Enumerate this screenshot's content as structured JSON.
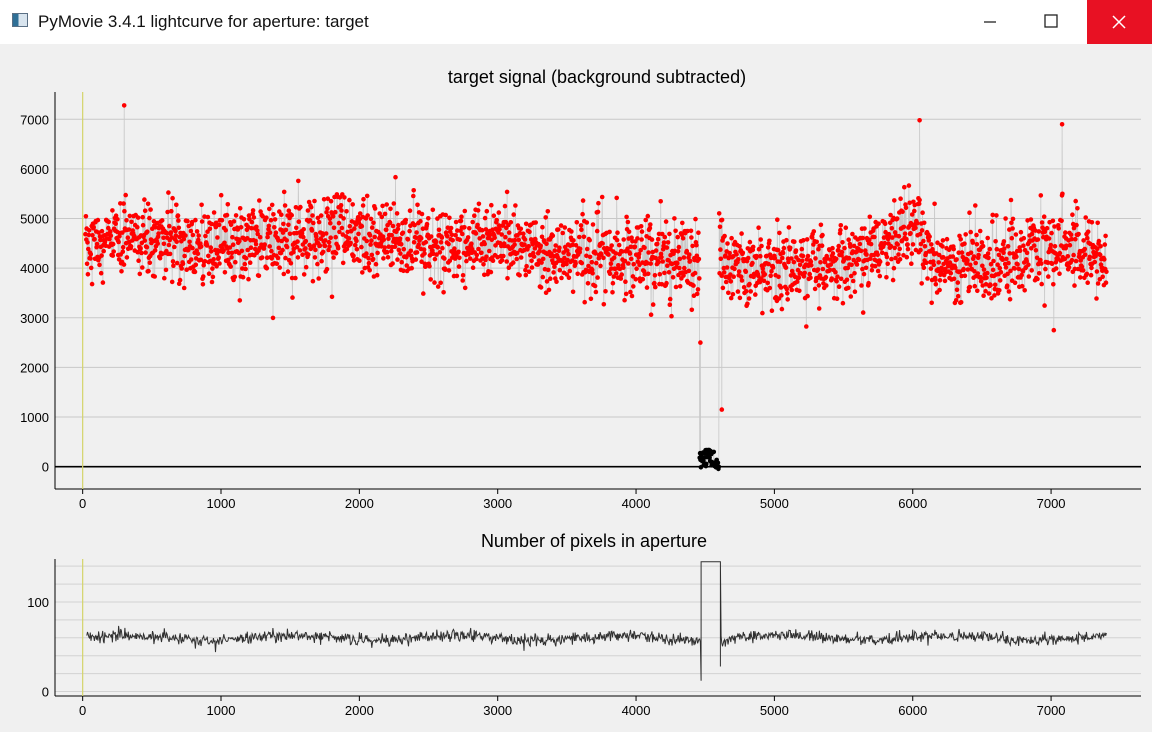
{
  "window": {
    "title": "PyMovie 3.4.1 lightcurve for aperture: target",
    "icons": [
      "app-icon",
      "minimize-icon",
      "maximize-icon",
      "close-icon"
    ]
  },
  "chart_data": [
    {
      "type": "scatter",
      "title": "target signal (background subtracted)",
      "xlabel": "",
      "ylabel": "",
      "xlim": [
        -200,
        7650
      ],
      "ylim": [
        -450,
        7550
      ],
      "x_ticks": [
        0,
        1000,
        2000,
        3000,
        4000,
        5000,
        6000,
        7000
      ],
      "y_ticks": [
        0,
        1000,
        2000,
        3000,
        4000,
        5000,
        6000,
        7000
      ],
      "grid": true,
      "legend": "none",
      "marker_color": "#ff0000",
      "dropout_marker_color": "#000000",
      "connector_color": "#c8c8c8",
      "n_frames": 7400,
      "series": [
        {
          "name": "",
          "x_range": [
            20,
            7400
          ],
          "trend": {
            "x": [
              20,
              500,
              1000,
              1500,
              2000,
              2500,
              3000,
              3500,
              4000,
              4450,
              4600,
              5000,
              5500,
              6000,
              6200,
              6500,
              7000,
              7400
            ],
            "y": [
              4500,
              4550,
              4450,
              4550,
              4700,
              4450,
              4550,
              4250,
              4200,
              4100,
              4150,
              4000,
              4150,
              4850,
              4000,
              4150,
              4400,
              4200
            ]
          },
          "scatter_sd": 450,
          "dropout": {
            "x_range": [
              4460,
              4600
            ],
            "y_range": [
              -50,
              350
            ]
          },
          "notable_points": [
            {
              "x": 300,
              "y": 7280
            },
            {
              "x": 4465,
              "y": 2500
            },
            {
              "x": 4620,
              "y": 1150
            },
            {
              "x": 6050,
              "y": 6980
            },
            {
              "x": 7080,
              "y": 6900
            },
            {
              "x": 7020,
              "y": 2750
            }
          ]
        }
      ]
    },
    {
      "type": "line",
      "title": "Number of pixels in aperture",
      "xlabel": "",
      "ylabel": "",
      "xlim": [
        -200,
        7650
      ],
      "ylim": [
        -5,
        148
      ],
      "x_ticks": [
        0,
        1000,
        2000,
        3000,
        4000,
        5000,
        6000,
        7000
      ],
      "y_ticks": [
        0,
        100
      ],
      "grid": true,
      "legend": "none",
      "line_color": "#303030",
      "series": [
        {
          "name": "",
          "x_range": [
            30,
            7400
          ],
          "baseline": 60,
          "noise_amplitude": 6,
          "bump": {
            "x_range": [
              4470,
              4610
            ],
            "value": 145,
            "low_spike": 12
          }
        }
      ]
    }
  ]
}
